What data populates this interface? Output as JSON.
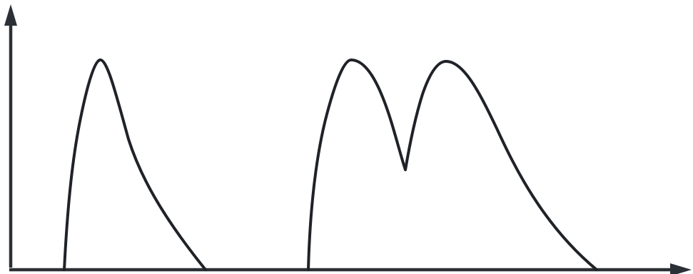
{
  "colors": {
    "background": "#ffffff",
    "axis": "#2b2f36",
    "curve": "#1f2227"
  },
  "diagram": {
    "axes": {
      "has_x_arrow": true,
      "has_y_arrow": true,
      "x_label": "",
      "y_label": ""
    },
    "curves": [
      {
        "id": "single-peak-wave",
        "peak_count": 1
      },
      {
        "id": "double-peak-wave",
        "peak_count": 2
      }
    ]
  }
}
